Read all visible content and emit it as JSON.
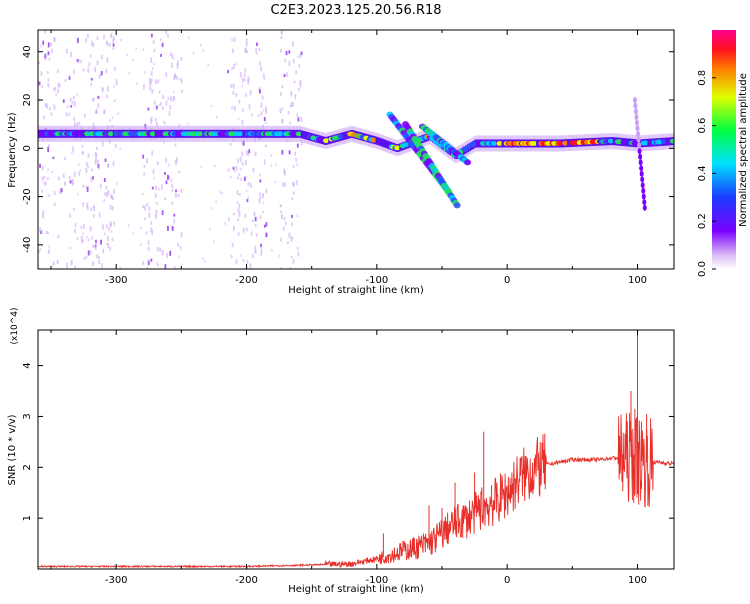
{
  "title": "C2E3.2023.125.20.56.R18",
  "colors": {
    "axis": "#000000",
    "snr_line": "#e8302b",
    "spectrogram_noise": "#b070f0"
  },
  "chart_data": [
    {
      "type": "heatmap",
      "name": "spectrogram",
      "xlabel": "Height of straight line (km)",
      "ylabel": "Frequency (Hz)",
      "xlim": [
        -360,
        128
      ],
      "ylim": [
        -50,
        49
      ],
      "xticks": [
        -300,
        -200,
        -100,
        0,
        100
      ],
      "yticks": [
        -40,
        -20,
        0,
        20,
        40
      ],
      "xtick_labels": [
        "-300",
        "-200",
        "-100",
        "0",
        "100"
      ],
      "ytick_labels": [
        "-40",
        "-20",
        "0",
        "20",
        "40"
      ],
      "colorbar": {
        "label": "Normalized spectral amplitude",
        "range": [
          0,
          1
        ],
        "ticks": [
          0.0,
          0.2,
          0.4,
          0.6,
          0.8
        ],
        "tick_labels": [
          "0.0",
          "0.2",
          "0.4",
          "0.6",
          "0.8"
        ],
        "colormap": "rainbow: white-violet-blue-cyan-green-yellow-red-magenta"
      },
      "features": {
        "main_band": [
          {
            "x": -360,
            "y": 6
          },
          {
            "x": -300,
            "y": 6
          },
          {
            "x": -250,
            "y": 6
          },
          {
            "x": -200,
            "y": 6
          },
          {
            "x": -160,
            "y": 6
          },
          {
            "x": -140,
            "y": 3
          },
          {
            "x": -120,
            "y": 6
          },
          {
            "x": -100,
            "y": 3
          },
          {
            "x": -85,
            "y": 0
          },
          {
            "x": -60,
            "y": 5
          },
          {
            "x": -40,
            "y": -3
          },
          {
            "x": -25,
            "y": 2
          },
          {
            "x": 0,
            "y": 2
          },
          {
            "x": 40,
            "y": 2
          },
          {
            "x": 80,
            "y": 3
          },
          {
            "x": 100,
            "y": 2
          },
          {
            "x": 128,
            "y": 3
          }
        ],
        "noise_regions": [
          {
            "x_from": -360,
            "x_to": -300
          },
          {
            "x_from": -280,
            "x_to": -250
          },
          {
            "x_from": -215,
            "x_to": -185
          },
          {
            "x_from": -175,
            "x_to": -158
          }
        ]
      }
    },
    {
      "type": "line",
      "name": "snr",
      "xlabel": "Height of straight line (km)",
      "ylabel": "SNR (10 * v/v)",
      "y_multiplier": "(x10^4)",
      "xlim": [
        -360,
        128
      ],
      "ylim": [
        0,
        4.7
      ],
      "xticks": [
        -300,
        -200,
        -100,
        0,
        100
      ],
      "yticks": [
        1,
        2,
        3,
        4
      ],
      "xtick_labels": [
        "-300",
        "-200",
        "-100",
        "0",
        "100"
      ],
      "ytick_labels": [
        "1",
        "2",
        "3",
        "4"
      ],
      "series": [
        {
          "x": [
            -360,
            -300,
            -200,
            -150,
            -120,
            -100,
            -80,
            -60,
            -50,
            -40,
            -30,
            -20,
            -10,
            0,
            10,
            20,
            30,
            40,
            50,
            60,
            70,
            80,
            90,
            95,
            100,
            105,
            110,
            115,
            128
          ],
          "y": [
            0.05,
            0.05,
            0.05,
            0.08,
            0.1,
            0.2,
            0.35,
            0.5,
            0.7,
            0.9,
            1.0,
            1.2,
            1.3,
            1.5,
            1.8,
            1.95,
            2.05,
            2.1,
            2.15,
            2.15,
            2.15,
            2.18,
            2.2,
            2.2,
            2.15,
            2.1,
            2.1,
            2.1,
            2.07
          ],
          "spikes": [
            {
              "x": -95,
              "y": 0.7
            },
            {
              "x": -80,
              "y": 0.55
            },
            {
              "x": -60,
              "y": 1.25
            },
            {
              "x": -50,
              "y": 1.2
            },
            {
              "x": -48,
              "y": 0.95
            },
            {
              "x": -40,
              "y": 1.7
            },
            {
              "x": -25,
              "y": 1.9
            },
            {
              "x": -18,
              "y": 2.7
            },
            {
              "x": -12,
              "y": 1.65
            },
            {
              "x": -5,
              "y": 1.4
            },
            {
              "x": 95,
              "y": 3.5
            },
            {
              "x": 98,
              "y": 3.15
            },
            {
              "x": 100,
              "y": 4.75
            },
            {
              "x": 103,
              "y": 2.9
            },
            {
              "x": 107,
              "y": 3.05
            }
          ]
        }
      ]
    }
  ]
}
